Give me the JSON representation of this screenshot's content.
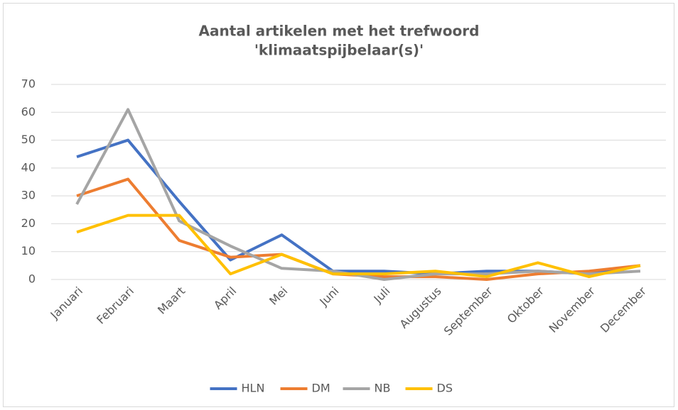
{
  "chart_data": {
    "type": "line",
    "title": [
      "Aantal artikelen met het trefwoord",
      "'klimaatspijbelaar(s)'"
    ],
    "categories": [
      "Januari",
      "Februari",
      "Maart",
      "April",
      "Mei",
      "Juni",
      "Juli",
      "Augustus",
      "September",
      "Oktober",
      "November",
      "December"
    ],
    "series": [
      {
        "name": "HLN",
        "color": "#4472c4",
        "values": [
          44,
          50,
          28,
          7,
          16,
          3,
          3,
          2,
          3,
          3,
          2,
          5
        ]
      },
      {
        "name": "DM",
        "color": "#ed7d31",
        "values": [
          30,
          36,
          14,
          8,
          9,
          2,
          1,
          1,
          0,
          2,
          3,
          5
        ]
      },
      {
        "name": "NB",
        "color": "#a5a5a5",
        "values": [
          27,
          61,
          21,
          12,
          4,
          3,
          0,
          2,
          2,
          3,
          2,
          3
        ]
      },
      {
        "name": "DS",
        "color": "#ffc000",
        "values": [
          17,
          23,
          23,
          2,
          9,
          2,
          2,
          3,
          1,
          6,
          1,
          5
        ]
      }
    ],
    "ylim": [
      0,
      70
    ],
    "yticks": [
      0,
      10,
      20,
      30,
      40,
      50,
      60,
      70
    ],
    "grid": true,
    "legend": "bottom"
  }
}
